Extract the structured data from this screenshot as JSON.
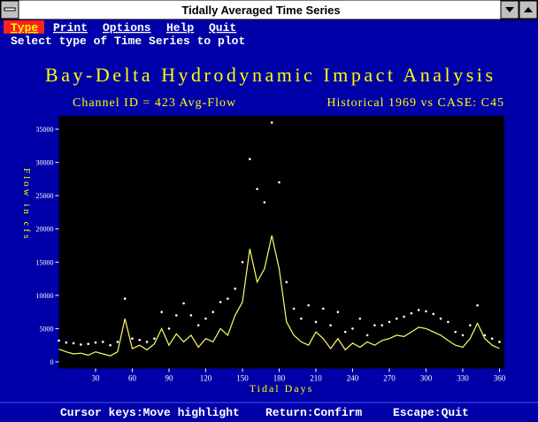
{
  "window": {
    "title": "Tidally Averaged Time Series"
  },
  "menu": [
    "Type",
    "Print",
    "Options",
    "Help",
    "Quit"
  ],
  "prompt": "Select type of Time Series to plot",
  "status": [
    "Cursor keys:Move highlight",
    "Return:Confirm",
    "Escape:Quit"
  ],
  "chart_data": {
    "type": "scatter-line",
    "title": "Bay-Delta Hydrodynamic Impact Analysis",
    "subtitle_left": "Channel ID = 423 Avg-Flow",
    "subtitle_right": "Historical 1969 vs CASE: C45",
    "x_label": "Tidal Days",
    "y_label": "Flow in cfs",
    "x": [
      0,
      6,
      12,
      18,
      24,
      30,
      36,
      42,
      48,
      54,
      60,
      66,
      72,
      78,
      84,
      90,
      96,
      102,
      108,
      114,
      120,
      126,
      132,
      138,
      144,
      150,
      156,
      162,
      168,
      174,
      180,
      186,
      192,
      198,
      204,
      210,
      216,
      222,
      228,
      234,
      240,
      246,
      252,
      258,
      264,
      270,
      276,
      282,
      288,
      294,
      300,
      306,
      312,
      318,
      324,
      330,
      336,
      342,
      348,
      354,
      360
    ],
    "series": [
      {
        "color": "#ffffff",
        "style": "dots",
        "values": [
          3200,
          2900,
          2800,
          2600,
          2700,
          2900,
          3000,
          2500,
          3000,
          9500,
          3500,
          3300,
          3000,
          3500,
          7500,
          5000,
          7000,
          8800,
          7000,
          5500,
          6500,
          7500,
          9000,
          9500,
          11000,
          15000,
          30500,
          26000,
          24000,
          36000,
          27000,
          12000,
          8000,
          6500,
          8500,
          6000,
          8000,
          5500,
          7500,
          4500,
          5000,
          6500,
          4000,
          5500,
          5500,
          6000,
          6500,
          6800,
          7300,
          7800,
          7600,
          7200,
          6500,
          6000,
          4500,
          4000,
          5500,
          8500,
          4000,
          3500,
          3000
        ]
      },
      {
        "color": "#ffff66",
        "style": "line",
        "values": [
          1900,
          1500,
          1200,
          1300,
          1000,
          1500,
          1200,
          900,
          1500,
          6500,
          2000,
          2500,
          1800,
          2700,
          5000,
          2500,
          4200,
          3000,
          4000,
          2200,
          3500,
          3000,
          5000,
          4000,
          7000,
          9000,
          17000,
          12000,
          14000,
          19000,
          14000,
          6000,
          4000,
          3000,
          2500,
          4500,
          3500,
          2000,
          3500,
          1800,
          2800,
          2200,
          3000,
          2500,
          3200,
          3500,
          4000,
          3800,
          4500,
          5200,
          5000,
          4500,
          4000,
          3200,
          2500,
          2200,
          3500,
          5800,
          3500,
          2500,
          2000
        ]
      }
    ],
    "xlim": [
      0,
      364
    ],
    "ylim": [
      -1000,
      37000
    ],
    "xticks": [
      30,
      60,
      90,
      120,
      150,
      180,
      210,
      240,
      270,
      300,
      330,
      360
    ],
    "yticks": [
      0,
      5000,
      10000,
      15000,
      20000,
      25000,
      30000,
      35000
    ]
  }
}
